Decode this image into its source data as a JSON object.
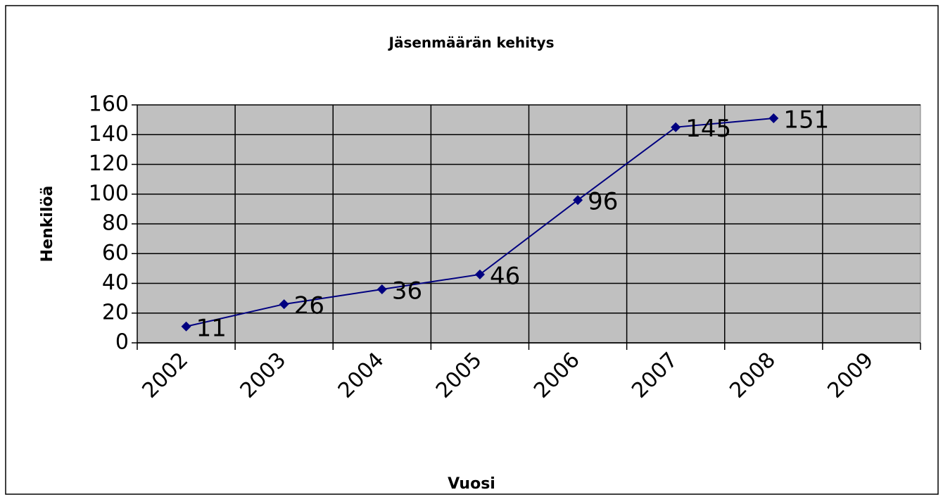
{
  "chart_data": {
    "type": "line",
    "title": "Jäsenmäärän kehitys",
    "x_label": "Vuosi",
    "y_label": "Henkilöä",
    "categories": [
      "2002",
      "2003",
      "2004",
      "2005",
      "2006",
      "2007",
      "2008",
      "2009"
    ],
    "values": [
      11,
      26,
      36,
      46,
      96,
      145,
      151,
      null
    ],
    "color": "#000080",
    "ylim": [
      0,
      160
    ],
    "yticks": [
      0,
      20,
      40,
      60,
      80,
      100,
      120,
      140,
      160
    ],
    "grid": true
  }
}
